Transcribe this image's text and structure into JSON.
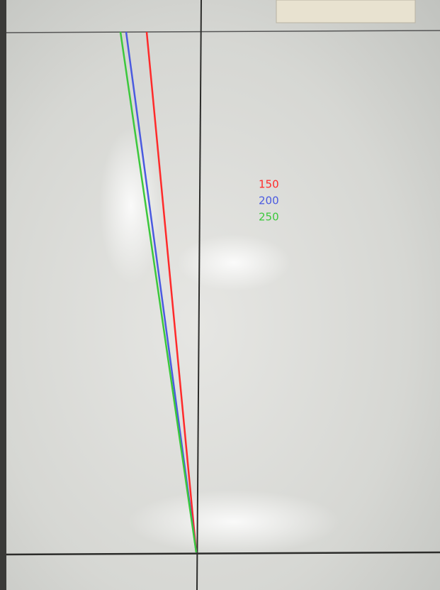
{
  "legend": [
    {
      "label": "150",
      "color": "#ff2a2a"
    },
    {
      "label": "200",
      "color": "#4a5ae0"
    },
    {
      "label": "250",
      "color": "#3cc83c"
    }
  ]
}
